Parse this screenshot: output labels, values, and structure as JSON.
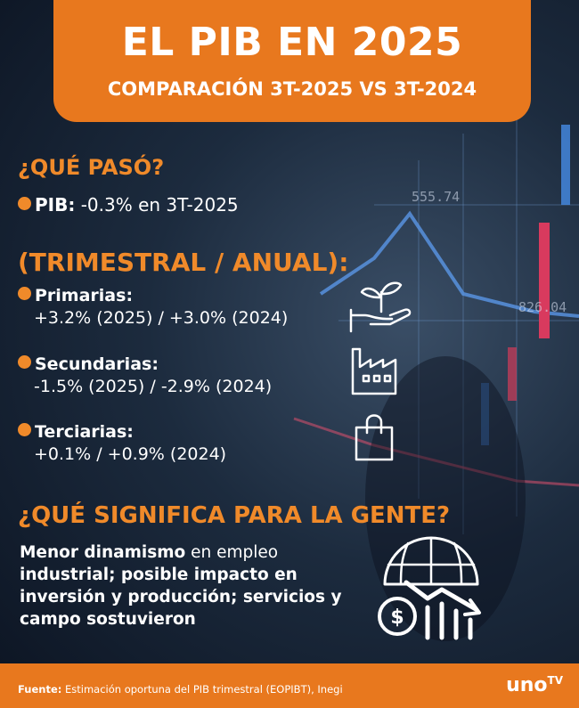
{
  "header": {
    "title": "EL PIB EN 2025",
    "subtitle": "COMPARACIÓN 3T-2025 VS 3T-2024"
  },
  "background": {
    "labels": [
      "555.74",
      "826.04"
    ]
  },
  "what_happened": {
    "heading": "¿QUÉ PASÓ?",
    "item": {
      "label": "PIB:",
      "text": "-0.3% en 3T-2025"
    }
  },
  "sectors": {
    "heading": "(TRIMESTRAL / ANUAL):",
    "items": [
      {
        "label": "Primarias:",
        "text": "+3.2% (2025) / +3.0% (2024)"
      },
      {
        "label": "Secundarias:",
        "text": "-1.5% (2025) / -2.9% (2024)"
      },
      {
        "label": "Terciarias:",
        "text": "+0.1% / +0.9% (2024)"
      }
    ]
  },
  "meaning": {
    "heading": "¿QUÉ SIGNIFICA PARA LA GENTE?",
    "segments": [
      "Menor dinamismo",
      "en empleo",
      "industrial; posible impacto en inversión y producción; servicios y campo sostuvieron"
    ]
  },
  "footer": {
    "source_label": "Fuente:",
    "source": "Estimación oportuna del PIB trimestral (EOPIBT), Inegi",
    "logo": "uno",
    "logo_suffix": "TV"
  }
}
